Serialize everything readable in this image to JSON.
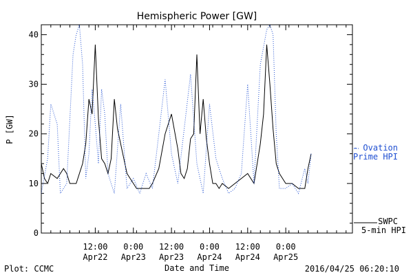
{
  "chart_data": {
    "type": "line",
    "title": "Hemispheric Power [GW]",
    "xlabel": "Date and Time",
    "ylabel": "P [GW]",
    "ylim": [
      0,
      42
    ],
    "yticks": [
      0,
      10,
      20,
      30,
      40
    ],
    "xlim": [
      "2016-04-21T19:00",
      "2016-04-25T21:00"
    ],
    "xticks": [
      {
        "time": "2016-04-22T12:00",
        "label": "12:00",
        "date": "Apr22"
      },
      {
        "time": "2016-04-23T00:00",
        "label": "0:00",
        "date": "Apr23"
      },
      {
        "time": "2016-04-23T12:00",
        "label": "12:00",
        "date": "Apr23"
      },
      {
        "time": "2016-04-24T00:00",
        "label": "0:00",
        "date": "Apr24"
      },
      {
        "time": "2016-04-24T12:00",
        "label": "12:00",
        "date": "Apr24"
      },
      {
        "time": "2016-04-25T00:00",
        "label": "0:00",
        "date": "Apr25"
      }
    ],
    "legend_placement": "right",
    "series": [
      {
        "name": "SWPC 5-min HPI",
        "style": "solid",
        "color": "#000000",
        "x": [
          "2016-04-21T19:00",
          "2016-04-21T20:00",
          "2016-04-21T21:00",
          "2016-04-21T22:00",
          "2016-04-22T00:00",
          "2016-04-22T01:00",
          "2016-04-22T02:00",
          "2016-04-22T03:00",
          "2016-04-22T04:00",
          "2016-04-22T06:00",
          "2016-04-22T08:00",
          "2016-04-22T09:00",
          "2016-04-22T10:00",
          "2016-04-22T11:00",
          "2016-04-22T12:00",
          "2016-04-22T13:00",
          "2016-04-22T14:00",
          "2016-04-22T15:00",
          "2016-04-22T16:00",
          "2016-04-22T17:00",
          "2016-04-22T18:00",
          "2016-04-22T19:00",
          "2016-04-22T20:00",
          "2016-04-22T21:00",
          "2016-04-22T22:00",
          "2016-04-22T23:00",
          "2016-04-23T00:00",
          "2016-04-23T01:00",
          "2016-04-23T02:00",
          "2016-04-23T03:00",
          "2016-04-23T04:00",
          "2016-04-23T05:00",
          "2016-04-23T06:00",
          "2016-04-23T08:00",
          "2016-04-23T10:00",
          "2016-04-23T12:00",
          "2016-04-23T14:00",
          "2016-04-23T15:00",
          "2016-04-23T16:00",
          "2016-04-23T17:00",
          "2016-04-23T18:00",
          "2016-04-23T19:00",
          "2016-04-23T20:00",
          "2016-04-23T21:00",
          "2016-04-23T22:00",
          "2016-04-23T23:00",
          "2016-04-24T00:00",
          "2016-04-24T01:00",
          "2016-04-24T02:00",
          "2016-04-24T03:00",
          "2016-04-24T04:00",
          "2016-04-24T06:00",
          "2016-04-24T08:00",
          "2016-04-24T10:00",
          "2016-04-24T12:00",
          "2016-04-24T14:00",
          "2016-04-24T15:00",
          "2016-04-24T16:00",
          "2016-04-24T17:00",
          "2016-04-24T18:00",
          "2016-04-24T19:00",
          "2016-04-24T20:00",
          "2016-04-24T21:00",
          "2016-04-24T22:00",
          "2016-04-24T23:00",
          "2016-04-25T00:00",
          "2016-04-25T02:00",
          "2016-04-25T04:00",
          "2016-04-25T06:00",
          "2016-04-25T07:00",
          "2016-04-25T08:00"
        ],
        "y": [
          14,
          11,
          10,
          12,
          11,
          12,
          13,
          12,
          10,
          10,
          14,
          18,
          27,
          24,
          38,
          23,
          15,
          14,
          12,
          15,
          27,
          21,
          18,
          15,
          12,
          11,
          10,
          9,
          9,
          9,
          9,
          9,
          10,
          13,
          20,
          24,
          17,
          12,
          11,
          13,
          19,
          20,
          36,
          20,
          27,
          19,
          14,
          10,
          10,
          9,
          10,
          9,
          10,
          11,
          12,
          10,
          14,
          18,
          24,
          38,
          30,
          21,
          14,
          12,
          11,
          10,
          10,
          9,
          9,
          13,
          16
        ]
      },
      {
        "name": "Ovation Prime HPI",
        "style": "dotted",
        "color": "#1f4fd1",
        "x": [
          "2016-04-21T19:00",
          "2016-04-21T21:00",
          "2016-04-21T22:00",
          "2016-04-22T00:00",
          "2016-04-22T01:00",
          "2016-04-22T03:00",
          "2016-04-22T05:00",
          "2016-04-22T06:00",
          "2016-04-22T07:00",
          "2016-04-22T08:00",
          "2016-04-22T09:00",
          "2016-04-22T10:00",
          "2016-04-22T11:00",
          "2016-04-22T12:00",
          "2016-04-22T13:00",
          "2016-04-22T14:00",
          "2016-04-22T15:00",
          "2016-04-22T16:00",
          "2016-04-22T18:00",
          "2016-04-22T20:00",
          "2016-04-22T22:00",
          "2016-04-23T00:00",
          "2016-04-23T02:00",
          "2016-04-23T04:00",
          "2016-04-23T06:00",
          "2016-04-23T08:00",
          "2016-04-23T10:00",
          "2016-04-23T12:00",
          "2016-04-23T14:00",
          "2016-04-23T16:00",
          "2016-04-23T18:00",
          "2016-04-23T20:00",
          "2016-04-23T22:00",
          "2016-04-24T00:00",
          "2016-04-24T02:00",
          "2016-04-24T04:00",
          "2016-04-24T06:00",
          "2016-04-24T08:00",
          "2016-04-24T10:00",
          "2016-04-24T12:00",
          "2016-04-24T14:00",
          "2016-04-24T16:00",
          "2016-04-24T18:00",
          "2016-04-24T19:00",
          "2016-04-24T20:00",
          "2016-04-24T21:00",
          "2016-04-24T22:00",
          "2016-04-25T00:00",
          "2016-04-25T02:00",
          "2016-04-25T04:00",
          "2016-04-25T06:00",
          "2016-04-25T07:00",
          "2016-04-25T08:00"
        ],
        "y": [
          8,
          15,
          26,
          22,
          8,
          10,
          36,
          40,
          42,
          34,
          11,
          16,
          29,
          22,
          14,
          29,
          24,
          12,
          8,
          26,
          9,
          11,
          8,
          12,
          9,
          20,
          31,
          16,
          10,
          21,
          32,
          14,
          8,
          26,
          15,
          11,
          8,
          9,
          12,
          30,
          10,
          34,
          41,
          42,
          40,
          20,
          9,
          9,
          10,
          8,
          13,
          10,
          16
        ]
      }
    ],
    "legend": [
      {
        "label_line1": "- Ovation",
        "label_line2": "Prime HPI"
      },
      {
        "label_line1": "SWPC",
        "label_line2": "5-min HPI"
      }
    ],
    "footer_left": "Plot: CCMC",
    "footer_right": "2016/04/25 06:20:10"
  }
}
